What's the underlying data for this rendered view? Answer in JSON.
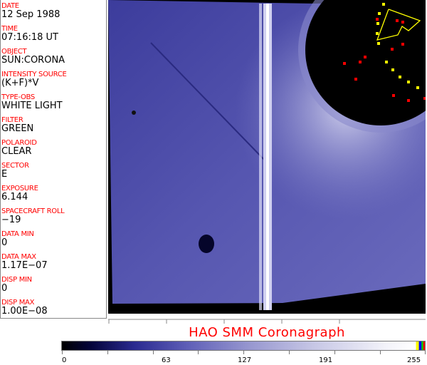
{
  "header_fields": [
    {
      "label": "DATE",
      "value": "12 Sep 1988"
    },
    {
      "label": "TIME",
      "value": "07:16:18 UT"
    },
    {
      "label": "OBJECT",
      "value": "SUN:CORONA"
    },
    {
      "label": "INTENSITY SOURCE",
      "value": "(K+F)*V"
    },
    {
      "label": "TYPE-OBS",
      "value": "WHITE LIGHT"
    },
    {
      "label": "FILTER",
      "value": "GREEN"
    },
    {
      "label": "POLAROID",
      "value": "CLEAR"
    },
    {
      "label": "SECTOR",
      "value": "E"
    },
    {
      "label": "EXPOSURE",
      "value": "6.144"
    },
    {
      "label": "SPACECRAFT ROLL",
      "value": "−19"
    },
    {
      "label": "DATA MIN",
      "value": "0"
    },
    {
      "label": "DATA MAX",
      "value": "1.17E−07"
    },
    {
      "label": "DISP MIN",
      "value": "0"
    },
    {
      "label": "DISP MAX",
      "value": "1.00E−08"
    }
  ],
  "title": "HAO  SMM  Coronagraph",
  "colorbar": {
    "ticks": [
      "0",
      "63",
      "127",
      "191",
      "255"
    ],
    "colormap": "black-blue-white",
    "overlay_colors": [
      "#ffff00",
      "#0000ff",
      "#00cc00",
      "#ff0000"
    ]
  },
  "colors": {
    "label": "#ff0000",
    "image_blue": "#5a5ab8",
    "overlay_yellow": "#ffff00",
    "overlay_red": "#ff0000"
  }
}
